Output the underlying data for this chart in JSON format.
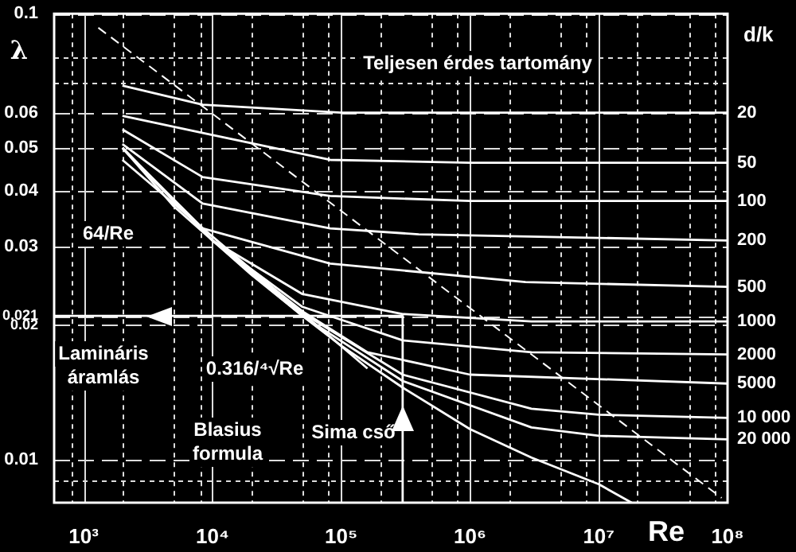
{
  "chart_data": {
    "type": "line",
    "xlabel": "Re",
    "ylabel": "λ",
    "legend_title": "d/k",
    "log": "xy",
    "grid": true,
    "xlim": [
      590,
      100000000
    ],
    "ylim": [
      0.008,
      0.1
    ],
    "xticks": [
      {
        "value": 800,
        "label": null
      },
      {
        "value": 1000,
        "label": "10³"
      },
      {
        "value": 2000,
        "label": null
      },
      {
        "value": 5000,
        "label": null
      },
      {
        "value": 8000,
        "label": null
      },
      {
        "value": 10000,
        "label": "10⁴"
      },
      {
        "value": 20000,
        "label": null
      },
      {
        "value": 50000,
        "label": null
      },
      {
        "value": 80000,
        "label": null
      },
      {
        "value": 100000,
        "label": "10⁵"
      },
      {
        "value": 200000,
        "label": null
      },
      {
        "value": 500000,
        "label": null
      },
      {
        "value": 800000,
        "label": null
      },
      {
        "value": 1000000,
        "label": "10⁶"
      },
      {
        "value": 2000000,
        "label": null
      },
      {
        "value": 5000000,
        "label": null
      },
      {
        "value": 8000000,
        "label": null
      },
      {
        "value": 10000000,
        "label": "10⁷"
      },
      {
        "value": 20000000,
        "label": null
      },
      {
        "value": 50000000,
        "label": null
      },
      {
        "value": 80000000,
        "label": null
      },
      {
        "value": 100000000,
        "label": "10⁸"
      }
    ],
    "yticks": [
      0.1,
      {
        "value": 0.08,
        "label": null
      },
      {
        "value": 0.07,
        "label": null
      },
      0.06,
      0.05,
      0.04,
      0.03,
      0.021,
      0.02,
      0.01,
      {
        "value": 0.009,
        "label": null
      }
    ],
    "series": [
      {
        "name": "20",
        "color": "#ffffff",
        "x": [
          2000,
          8400,
          100000,
          100000000
        ],
        "values": [
          0.069,
          0.0625,
          0.06,
          0.06
        ]
      },
      {
        "name": "50",
        "color": "#ffffff",
        "x": [
          2000,
          8400,
          82000,
          1000000,
          100000000
        ],
        "values": [
          0.059,
          0.054,
          0.047,
          0.0463,
          0.0463
        ]
      },
      {
        "name": "100",
        "color": "#ffffff",
        "x": [
          2000,
          8400,
          82000,
          1000000,
          100000000
        ],
        "values": [
          0.055,
          0.043,
          0.039,
          0.038,
          0.038
        ]
      },
      {
        "name": "200",
        "color": "#ffffff",
        "x": [
          2000,
          8400,
          82000,
          400000,
          100000000
        ],
        "values": [
          0.051,
          0.0375,
          0.033,
          0.032,
          0.031
        ]
      },
      {
        "name": "500",
        "color": "#ffffff",
        "x": [
          2000,
          8400,
          82000,
          2700000,
          100000000
        ],
        "values": [
          0.05,
          0.033,
          0.0275,
          0.025,
          0.0244
        ]
      },
      {
        "name": "1000",
        "color": "#ffffff",
        "x": [
          2000,
          10000,
          50000,
          300000,
          3000000,
          100000000
        ],
        "values": [
          0.05,
          0.031,
          0.0235,
          0.0212,
          0.0204,
          0.0204
        ]
      },
      {
        "name": "2000",
        "color": "#ffffff",
        "x": [
          2000,
          10000,
          50000,
          300000,
          3000000,
          100000000
        ],
        "values": [
          0.05,
          0.031,
          0.022,
          0.0185,
          0.0174,
          0.0172
        ]
      },
      {
        "name": "5000",
        "color": "#ffffff",
        "x": [
          2000,
          10000,
          50000,
          160000,
          1000000,
          100000000
        ],
        "values": [
          0.05,
          0.031,
          0.0215,
          0.0174,
          0.0155,
          0.0148
        ]
      },
      {
        "name": "10 000",
        "color": "#ffffff",
        "x": [
          2000,
          10000,
          50000,
          300000,
          3000000,
          10000000,
          100000000
        ],
        "values": [
          0.05,
          0.031,
          0.0213,
          0.0155,
          0.013,
          0.0126,
          0.0124
        ]
      },
      {
        "name": "20 000",
        "color": "#ffffff",
        "x": [
          2000,
          10000,
          50000,
          300000,
          3000000,
          10000000,
          100000000
        ],
        "values": [
          0.05,
          0.031,
          0.021,
          0.015,
          0.0118,
          0.0113,
          0.0111
        ]
      },
      {
        "color": "#ffffff",
        "x": [
          2000,
          5000,
          10000,
          20000,
          50000,
          100000,
          300000,
          1000000,
          3000000,
          10000000,
          18000000
        ],
        "values": [
          0.05,
          0.037,
          0.031,
          0.026,
          0.021,
          0.018,
          0.0145,
          0.0117,
          0.0101,
          0.0088,
          0.008
        ]
      },
      {
        "color": "#ffffff",
        "x": [
          2000,
          160000
        ],
        "values": [
          0.047,
          0.016
        ]
      },
      {
        "color": "#ffffff",
        "line_style": "dashed",
        "x": [
          1300,
          90000000
        ],
        "values": [
          0.093,
          0.0082
        ]
      },
      {
        "color": "#ffffff",
        "x": [
          590,
          300000,
          300000
        ],
        "values": [
          0.021,
          0.021,
          0.008
        ]
      }
    ],
    "annotations": [
      "Teljesen érdes tartomány",
      "64/Re",
      "0.316/⁴√Re",
      "Lamináris\náramlás",
      "Blasius\nformula",
      "Sima cső"
    ]
  }
}
